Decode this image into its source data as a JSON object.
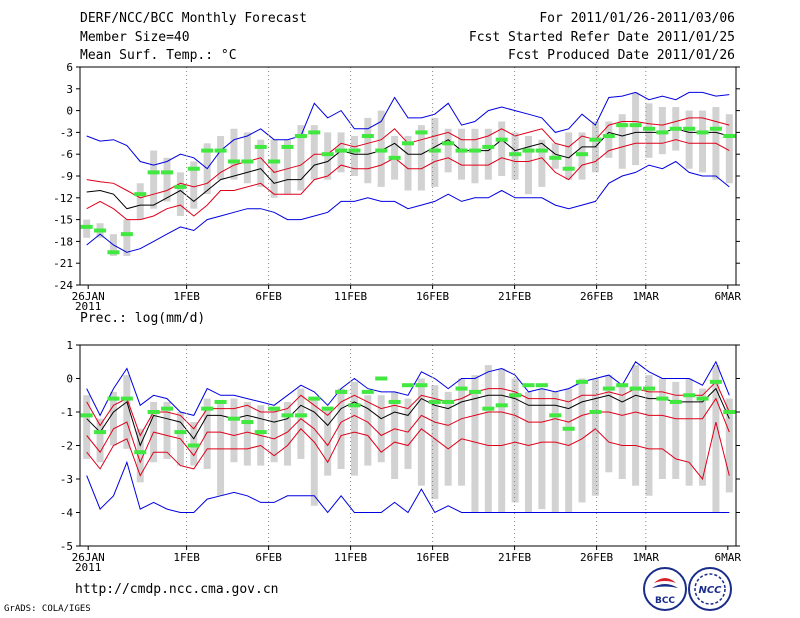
{
  "header": {
    "title": "DERF/NCC/BCC Monthly Forecast",
    "member_size": "Member Size=40",
    "variable": "Mean Surf. Temp.: °C",
    "period": "For 2011/01/26-2011/03/06",
    "refer_date": "Fcst Started Refer Date 2011/01/25",
    "produced_date": "Fcst Produced Date 2011/01/26"
  },
  "footer": {
    "url": "http://cmdp.ncc.cma.gov.cn",
    "credit": "GrADS: COLA/IGES",
    "logo_bcc_text": "BCC",
    "logo_ncc_text": "NCC"
  },
  "colors": {
    "box": "#d2d2d2",
    "ensemble_mean": "#000000",
    "inner_band": "#e0001a",
    "outer_envelope": "#0000e0",
    "observed": "#40e840"
  },
  "chart_data": [
    {
      "type": "line",
      "title": "Mean Surf. Temp.: °C",
      "x_tick_labels": [
        "26JAN",
        "1FEB",
        "6FEB",
        "11FEB",
        "16FEB",
        "21FEB",
        "26FEB",
        "1MAR",
        "6MAR"
      ],
      "x_tick_day_index": [
        0,
        6,
        11,
        16,
        21,
        26,
        31,
        34,
        39
      ],
      "x_year_label": "2011",
      "ylim": [
        -24,
        6
      ],
      "yticks": [
        -24,
        -21,
        -18,
        -15,
        -12,
        -9,
        -6,
        -3,
        0,
        3,
        6
      ],
      "series": [
        {
          "name": "max",
          "values": [
            -3.5,
            -4.2,
            -4.0,
            -4.8,
            -7.0,
            -7.5,
            -7.0,
            -6.0,
            -6.5,
            -8.0,
            -5.5,
            -4.0,
            -3.5,
            -2.5,
            -4.0,
            -4.0,
            -3.5,
            1.0,
            -1.0,
            0.0,
            -2.5,
            -2.5,
            -1.5,
            1.8,
            -1.0,
            -1.0,
            -0.5,
            1.0,
            -2.0,
            -1.5,
            0.0,
            0.5,
            0.0,
            -0.5,
            -1.0,
            -3.0,
            -2.5,
            -0.5,
            -2.0,
            1.8,
            2.0,
            2.5,
            1.5,
            2.0,
            1.5,
            2.5,
            2.5,
            2.0,
            2.2
          ]
        },
        {
          "name": "upper",
          "values": [
            -9.5,
            -9.8,
            -10.0,
            -11.0,
            -12.0,
            -11.5,
            -11.0,
            -10.0,
            -10.5,
            -10.0,
            -8.5,
            -7.5,
            -7.0,
            -6.5,
            -8.5,
            -8.0,
            -7.5,
            -6.0,
            -6.0,
            -4.5,
            -5.0,
            -4.5,
            -4.0,
            -2.5,
            -4.5,
            -4.0,
            -3.5,
            -3.0,
            -4.0,
            -4.0,
            -3.5,
            -2.5,
            -3.5,
            -3.0,
            -2.5,
            -4.5,
            -5.0,
            -3.5,
            -4.0,
            -2.0,
            -1.5,
            -1.5,
            -1.8,
            -2.0,
            -1.5,
            -1.0,
            -1.0,
            -1.5,
            -2.0
          ]
        },
        {
          "name": "mean",
          "values": [
            -11.2,
            -11.0,
            -11.5,
            -13.5,
            -13.0,
            -13.0,
            -12.0,
            -11.0,
            -12.5,
            -11.0,
            -9.5,
            -9.0,
            -8.5,
            -8.0,
            -10.0,
            -9.5,
            -9.5,
            -7.5,
            -7.0,
            -5.5,
            -6.0,
            -6.0,
            -5.5,
            -4.5,
            -6.0,
            -6.0,
            -5.0,
            -4.0,
            -5.5,
            -5.5,
            -5.5,
            -4.0,
            -5.5,
            -5.0,
            -4.5,
            -6.0,
            -6.5,
            -5.0,
            -5.0,
            -3.0,
            -3.5,
            -3.0,
            -3.0,
            -3.0,
            -2.5,
            -3.0,
            -3.0,
            -3.0,
            -3.5
          ]
        },
        {
          "name": "lower",
          "values": [
            -13.5,
            -12.5,
            -13.5,
            -15.0,
            -15.0,
            -14.5,
            -13.5,
            -13.0,
            -14.5,
            -13.0,
            -11.0,
            -11.0,
            -10.5,
            -10.0,
            -11.5,
            -11.5,
            -11.5,
            -9.5,
            -9.0,
            -7.5,
            -8.0,
            -8.0,
            -7.5,
            -6.5,
            -8.0,
            -8.0,
            -7.0,
            -6.5,
            -7.5,
            -7.5,
            -7.5,
            -6.5,
            -7.0,
            -7.0,
            -6.5,
            -8.5,
            -9.5,
            -7.5,
            -7.0,
            -5.5,
            -5.0,
            -4.5,
            -4.5,
            -4.5,
            -4.0,
            -4.5,
            -4.5,
            -4.5,
            -5.5
          ]
        },
        {
          "name": "min",
          "values": [
            -18.5,
            -17.0,
            -18.5,
            -19.5,
            -19.0,
            -18.0,
            -17.0,
            -16.0,
            -16.5,
            -15.0,
            -14.5,
            -14.0,
            -13.5,
            -13.5,
            -14.0,
            -15.0,
            -15.0,
            -14.5,
            -14.0,
            -12.5,
            -12.5,
            -12.0,
            -12.5,
            -12.5,
            -13.5,
            -13.0,
            -12.5,
            -11.5,
            -12.5,
            -12.0,
            -12.0,
            -11.0,
            -12.0,
            -12.0,
            -12.0,
            -13.0,
            -13.5,
            -13.0,
            -12.5,
            -10.0,
            -9.0,
            -8.5,
            -7.5,
            -8.0,
            -7.0,
            -8.5,
            -9.0,
            -9.0,
            -10.5
          ]
        },
        {
          "name": "box_high",
          "values": [
            -15.0,
            -15.5,
            -17.0,
            -15.0,
            -10.0,
            -5.5,
            -6.5,
            -8.5,
            -7.0,
            -4.5,
            -3.5,
            -2.5,
            -3.0,
            -4.0,
            -4.0,
            -4.0,
            -2.0,
            -2.0,
            -3.0,
            -3.0,
            -3.5,
            -1.0,
            0.0,
            -3.5,
            -3.5,
            -2.0,
            -1.0,
            -2.5,
            -2.5,
            -2.5,
            -2.5,
            -1.5,
            -3.0,
            -3.5,
            -4.0,
            -4.5,
            -3.0,
            -3.0,
            -1.5,
            -1.5,
            -0.5,
            2.5,
            1.0,
            0.5,
            0.5,
            0.0,
            0.0,
            0.5,
            -0.5
          ]
        },
        {
          "name": "box_low",
          "values": [
            -17.5,
            -17.5,
            -20.0,
            -20.0,
            -15.0,
            -13.5,
            -12.5,
            -14.5,
            -13.5,
            -11.5,
            -9.5,
            -9.5,
            -10.0,
            -10.5,
            -12.0,
            -11.5,
            -11.0,
            -9.5,
            -9.5,
            -8.5,
            -9.0,
            -10.0,
            -10.5,
            -9.5,
            -11.0,
            -11.0,
            -10.5,
            -8.5,
            -9.5,
            -10.0,
            -9.5,
            -9.0,
            -9.5,
            -11.5,
            -10.5,
            -8.0,
            -9.5,
            -9.5,
            -8.5,
            -6.5,
            -8.0,
            -7.5,
            -6.5,
            -6.0,
            -5.5,
            -8.0,
            -8.5,
            -9.5,
            -10.0
          ]
        },
        {
          "name": "observed",
          "values": [
            -16.0,
            -16.5,
            -19.5,
            -17.0,
            -11.5,
            -8.5,
            -8.5,
            -10.5,
            -8.0,
            -5.5,
            -5.5,
            -7.0,
            -7.0,
            -5.0,
            -7.0,
            -5.0,
            -3.5,
            -3.0,
            -6.0,
            -5.5,
            -5.5,
            -3.5,
            -5.5,
            -6.5,
            -4.5,
            -3.0,
            -5.5,
            -4.5,
            -5.5,
            -5.5,
            -5.0,
            -4.0,
            -6.0,
            -5.5,
            -5.5,
            -6.5,
            -8.0,
            -6.0,
            -4.0,
            -3.5,
            -2.0,
            -2.0,
            -2.5,
            -3.0,
            -2.5,
            -2.5,
            -3.0,
            -2.5,
            -3.5
          ]
        }
      ]
    },
    {
      "type": "line",
      "title": "Prec.: log(mm/d)",
      "x_tick_labels": [
        "26JAN",
        "1FEB",
        "6FEB",
        "11FEB",
        "16FEB",
        "21FEB",
        "26FEB",
        "1MAR",
        "6MAR"
      ],
      "x_tick_day_index": [
        0,
        6,
        11,
        16,
        21,
        26,
        31,
        34,
        39
      ],
      "x_year_label": "2011",
      "ylim": [
        -5,
        1
      ],
      "yticks": [
        -5,
        -4,
        -3,
        -2,
        -1,
        0,
        1
      ],
      "series": [
        {
          "name": "max",
          "values": [
            -0.3,
            -1.1,
            -0.3,
            0.3,
            -0.8,
            -0.5,
            -0.6,
            -1.0,
            -1.1,
            -0.3,
            -0.5,
            -0.5,
            -0.6,
            -0.7,
            -0.8,
            -0.5,
            -0.2,
            -0.4,
            -0.8,
            -0.3,
            0.0,
            -0.3,
            -0.4,
            -0.4,
            -0.5,
            0.2,
            0.0,
            -0.3,
            0.0,
            0.0,
            0.2,
            0.3,
            0.1,
            -0.4,
            -0.3,
            -0.4,
            -0.3,
            -0.1,
            0.0,
            0.1,
            -0.2,
            0.5,
            0.2,
            0.0,
            0.0,
            0.0,
            -0.2,
            0.5,
            -0.5
          ]
        },
        {
          "name": "upper",
          "values": [
            -0.7,
            -1.4,
            -0.8,
            -0.6,
            -1.7,
            -1.0,
            -1.0,
            -1.1,
            -1.5,
            -0.9,
            -0.9,
            -0.9,
            -0.8,
            -1.0,
            -1.0,
            -0.9,
            -0.5,
            -0.8,
            -1.1,
            -0.7,
            -0.5,
            -0.7,
            -0.9,
            -0.8,
            -0.9,
            -0.5,
            -0.6,
            -0.7,
            -0.6,
            -0.4,
            -0.3,
            -0.3,
            -0.4,
            -0.6,
            -0.6,
            -0.6,
            -0.7,
            -0.5,
            -0.5,
            -0.4,
            -0.5,
            -0.3,
            -0.4,
            -0.4,
            -0.5,
            -0.5,
            -0.5,
            -0.1,
            -1.0
          ]
        },
        {
          "name": "mean",
          "values": [
            -1.2,
            -1.6,
            -1.0,
            -0.7,
            -2.0,
            -1.1,
            -1.2,
            -1.3,
            -1.8,
            -1.1,
            -1.1,
            -1.2,
            -1.1,
            -1.2,
            -1.3,
            -1.2,
            -0.8,
            -1.0,
            -1.4,
            -0.9,
            -0.7,
            -0.9,
            -1.2,
            -1.0,
            -1.1,
            -0.6,
            -0.8,
            -0.9,
            -0.7,
            -0.6,
            -0.5,
            -0.5,
            -0.6,
            -0.8,
            -0.8,
            -0.8,
            -0.9,
            -0.7,
            -0.6,
            -0.5,
            -0.7,
            -0.5,
            -0.6,
            -0.6,
            -0.7,
            -0.7,
            -0.7,
            -0.3,
            -1.2
          ]
        },
        {
          "name": "lower",
          "values": [
            -1.7,
            -2.2,
            -1.5,
            -1.3,
            -2.5,
            -1.6,
            -1.7,
            -1.8,
            -2.3,
            -1.6,
            -1.6,
            -1.7,
            -1.6,
            -1.7,
            -1.8,
            -1.6,
            -1.2,
            -1.5,
            -2.0,
            -1.3,
            -1.1,
            -1.3,
            -1.7,
            -1.5,
            -1.6,
            -1.1,
            -1.3,
            -1.4,
            -1.2,
            -1.1,
            -1.0,
            -1.0,
            -1.1,
            -1.3,
            -1.3,
            -1.2,
            -1.3,
            -1.1,
            -1.0,
            -1.0,
            -1.1,
            -1.0,
            -1.1,
            -1.1,
            -1.2,
            -1.2,
            -1.2,
            -0.6,
            -1.6
          ]
        },
        {
          "name": "lower2",
          "values": [
            -2.2,
            -2.7,
            -2.0,
            -1.8,
            -2.9,
            -2.2,
            -2.2,
            -2.6,
            -2.7,
            -2.1,
            -2.1,
            -2.1,
            -2.1,
            -2.0,
            -2.3,
            -2.0,
            -1.5,
            -1.9,
            -2.5,
            -1.7,
            -1.6,
            -1.7,
            -2.2,
            -1.9,
            -2.0,
            -1.5,
            -1.8,
            -2.1,
            -1.8,
            -1.9,
            -2.0,
            -2.0,
            -1.9,
            -2.0,
            -1.9,
            -1.9,
            -2.0,
            -1.8,
            -1.5,
            -1.9,
            -2.0,
            -2.0,
            -2.1,
            -2.1,
            -2.4,
            -2.5,
            -3.0,
            -1.3,
            -2.9
          ]
        },
        {
          "name": "min",
          "values": [
            -2.9,
            -3.9,
            -3.5,
            -2.5,
            -3.9,
            -3.7,
            -3.9,
            -4.0,
            -4.0,
            -3.6,
            -3.5,
            -3.4,
            -3.5,
            -3.7,
            -3.7,
            -3.5,
            -3.5,
            -3.5,
            -4.0,
            -3.5,
            -4.0,
            -4.0,
            -4.0,
            -3.7,
            -4.0,
            -3.3,
            -4.0,
            -3.8,
            -4.0,
            -4.0,
            -4.0,
            -4.0,
            -4.0,
            -4.0,
            -4.0,
            -4.0,
            -4.0,
            -4.0,
            -4.0,
            -4.0,
            -4.0,
            -4.0,
            -4.0,
            -4.0,
            -4.0,
            -4.0,
            -4.0,
            -4.0,
            -4.0
          ]
        },
        {
          "name": "box_high",
          "values": [
            -0.5,
            -1.2,
            -0.4,
            0.1,
            -1.5,
            -0.7,
            -0.7,
            -1.0,
            -1.3,
            -0.6,
            -0.7,
            -0.6,
            -0.7,
            -0.8,
            -0.9,
            -0.7,
            -0.3,
            -0.6,
            -0.9,
            -0.3,
            -0.1,
            -0.5,
            -0.5,
            -0.4,
            -0.6,
            0.0,
            -0.2,
            -0.4,
            0.0,
            0.1,
            0.4,
            0.3,
            0.0,
            -0.4,
            -0.3,
            -0.4,
            -0.3,
            0.0,
            0.0,
            0.1,
            -0.2,
            0.4,
            0.1,
            0.0,
            -0.1,
            0.0,
            -0.3,
            0.4,
            -0.6
          ]
        },
        {
          "name": "box_low",
          "values": [
            -2.4,
            -2.5,
            -2.0,
            -2.1,
            -3.1,
            -2.5,
            -2.4,
            -2.6,
            -2.6,
            -2.7,
            -3.5,
            -2.5,
            -2.6,
            -2.6,
            -2.5,
            -2.6,
            -2.4,
            -3.8,
            -2.9,
            -2.7,
            -2.9,
            -2.6,
            -2.5,
            -3.0,
            -2.7,
            -3.2,
            -3.6,
            -3.2,
            -3.2,
            -4.0,
            -4.0,
            -4.0,
            -3.7,
            -4.0,
            -3.9,
            -4.0,
            -4.0,
            -3.7,
            -3.5,
            -2.8,
            -3.0,
            -3.2,
            -3.5,
            -3.0,
            -3.0,
            -3.2,
            -3.2,
            -4.0,
            -3.4
          ]
        },
        {
          "name": "observed",
          "values": [
            -1.1,
            -1.6,
            -0.6,
            -0.6,
            -2.2,
            -1.0,
            -0.9,
            -1.6,
            -2.0,
            -0.9,
            -0.7,
            -1.2,
            -1.3,
            -1.6,
            -0.9,
            -1.1,
            -1.1,
            -0.6,
            -0.9,
            -0.4,
            -0.8,
            -0.4,
            0.0,
            -0.7,
            -0.2,
            -0.2,
            -0.7,
            -0.7,
            -0.3,
            -0.4,
            -0.9,
            -0.8,
            -0.5,
            -0.2,
            -0.2,
            -1.1,
            -1.5,
            -0.1,
            -1.0,
            -0.3,
            -0.2,
            -0.3,
            -0.3,
            -0.6,
            -0.7,
            -0.5,
            -0.6,
            -0.1,
            -1.0
          ]
        }
      ]
    }
  ]
}
